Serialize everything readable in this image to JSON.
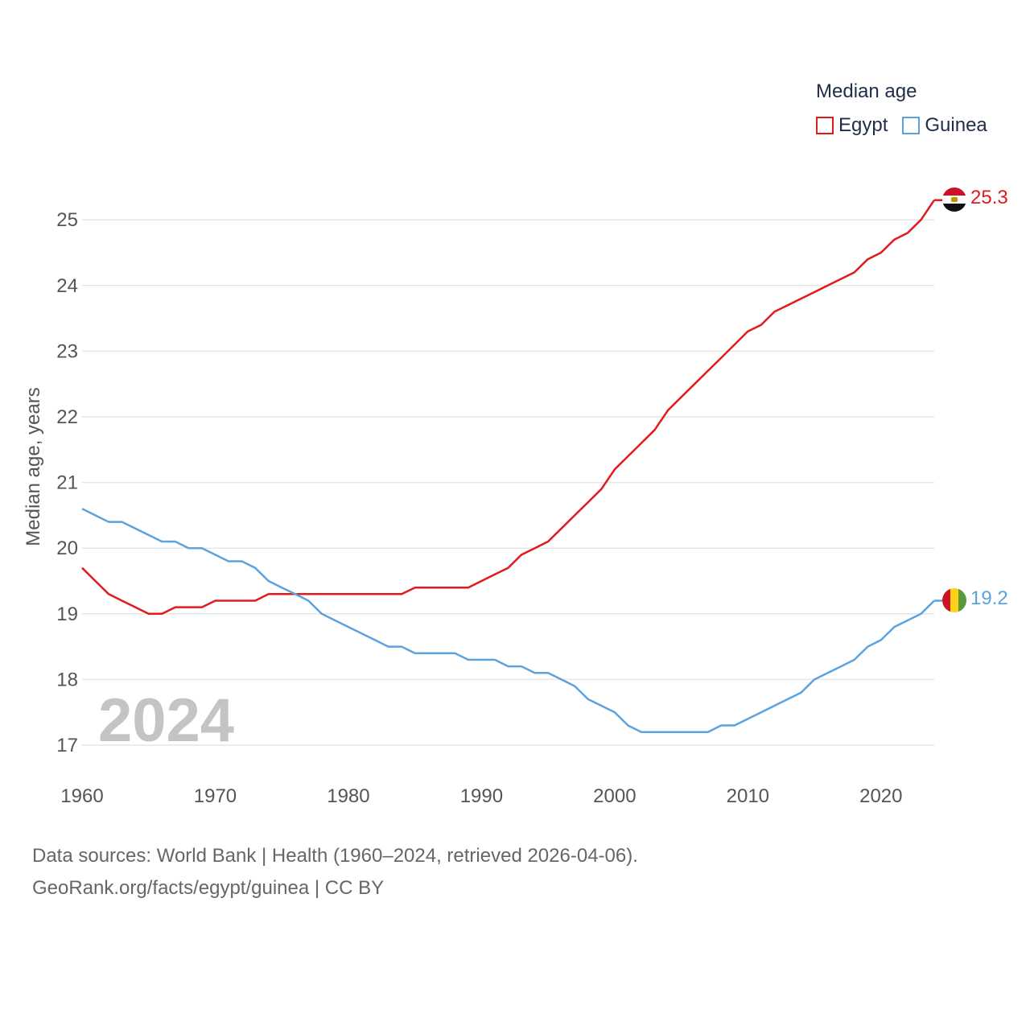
{
  "legend": {
    "title": "Median age",
    "items": [
      {
        "label": "Egypt",
        "color": "#e31a1c"
      },
      {
        "label": "Guinea",
        "color": "#5ba3e0"
      }
    ]
  },
  "year_watermark": "2024",
  "footer": {
    "line1": "Data sources: World Bank | Health (1960–2024, retrieved 2026-04-06).",
    "line2": "GeoRank.org/facts/egypt/guinea | CC BY"
  },
  "end_labels": {
    "egypt": "25.3",
    "guinea": "19.2"
  },
  "chart_data": {
    "type": "line",
    "title": "Median age",
    "xlabel": "",
    "ylabel": "Median age, years",
    "xlim": [
      1960,
      2024
    ],
    "ylim": [
      17,
      25.3
    ],
    "x_ticks": [
      1960,
      1970,
      1980,
      1990,
      2000,
      2010,
      2020
    ],
    "y_ticks": [
      17,
      18,
      19,
      20,
      21,
      22,
      23,
      24,
      25
    ],
    "grid": true,
    "x": [
      1960,
      1961,
      1962,
      1963,
      1964,
      1965,
      1966,
      1967,
      1968,
      1969,
      1970,
      1971,
      1972,
      1973,
      1974,
      1975,
      1976,
      1977,
      1978,
      1979,
      1980,
      1981,
      1982,
      1983,
      1984,
      1985,
      1986,
      1987,
      1988,
      1989,
      1990,
      1991,
      1992,
      1993,
      1994,
      1995,
      1996,
      1997,
      1998,
      1999,
      2000,
      2001,
      2002,
      2003,
      2004,
      2005,
      2006,
      2007,
      2008,
      2009,
      2010,
      2011,
      2012,
      2013,
      2014,
      2015,
      2016,
      2017,
      2018,
      2019,
      2020,
      2021,
      2022,
      2023,
      2024
    ],
    "series": [
      {
        "name": "Egypt",
        "color": "#e31a1c",
        "values": [
          19.7,
          19.5,
          19.3,
          19.2,
          19.1,
          19.0,
          19.0,
          19.1,
          19.1,
          19.1,
          19.2,
          19.2,
          19.2,
          19.2,
          19.3,
          19.3,
          19.3,
          19.3,
          19.3,
          19.3,
          19.3,
          19.3,
          19.3,
          19.3,
          19.3,
          19.4,
          19.4,
          19.4,
          19.4,
          19.4,
          19.5,
          19.6,
          19.7,
          19.9,
          20.0,
          20.1,
          20.3,
          20.5,
          20.7,
          20.9,
          21.2,
          21.4,
          21.6,
          21.8,
          22.1,
          22.3,
          22.5,
          22.7,
          22.9,
          23.1,
          23.3,
          23.4,
          23.6,
          23.7,
          23.8,
          23.9,
          24.0,
          24.1,
          24.2,
          24.4,
          24.5,
          24.7,
          24.8,
          25.0,
          25.3
        ]
      },
      {
        "name": "Guinea",
        "color": "#5ba3e0",
        "values": [
          20.6,
          20.5,
          20.4,
          20.4,
          20.3,
          20.2,
          20.1,
          20.1,
          20.0,
          20.0,
          19.9,
          19.8,
          19.8,
          19.7,
          19.5,
          19.4,
          19.3,
          19.2,
          19.0,
          18.9,
          18.8,
          18.7,
          18.6,
          18.5,
          18.5,
          18.4,
          18.4,
          18.4,
          18.4,
          18.3,
          18.3,
          18.3,
          18.2,
          18.2,
          18.1,
          18.1,
          18.0,
          17.9,
          17.7,
          17.6,
          17.5,
          17.3,
          17.2,
          17.2,
          17.2,
          17.2,
          17.2,
          17.2,
          17.3,
          17.3,
          17.4,
          17.5,
          17.6,
          17.7,
          17.8,
          18.0,
          18.1,
          18.2,
          18.3,
          18.5,
          18.6,
          18.8,
          18.9,
          19.0,
          19.2
        ]
      }
    ]
  }
}
